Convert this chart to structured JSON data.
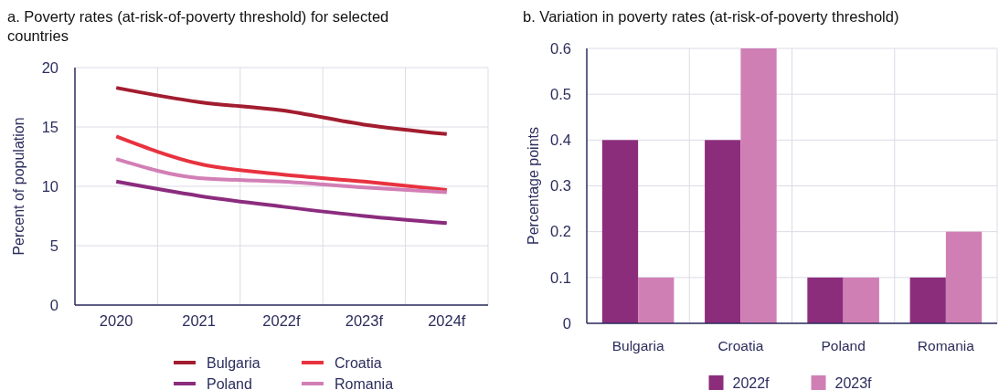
{
  "chart_data": [
    {
      "type": "line",
      "title": "a. Poverty rates (at-risk-of-poverty threshold) for selected countries",
      "ylabel": "Percent of population",
      "categories": [
        "2020",
        "2021",
        "2022f",
        "2023f",
        "2024f"
      ],
      "series": [
        {
          "name": "Bulgaria",
          "color": "#a21d2f",
          "values": [
            18.3,
            17.1,
            16.4,
            15.2,
            14.4
          ]
        },
        {
          "name": "Croatia",
          "color": "#e8323f",
          "values": [
            14.2,
            11.9,
            11.0,
            10.4,
            9.7
          ]
        },
        {
          "name": "Poland",
          "color": "#8b2c7e",
          "values": [
            10.4,
            9.2,
            8.3,
            7.5,
            6.9
          ]
        },
        {
          "name": "Romania",
          "color": "#d27fb6",
          "values": [
            12.3,
            10.7,
            10.4,
            9.9,
            9.5
          ]
        }
      ],
      "ylim": [
        0,
        20
      ],
      "yticks": [
        0,
        5,
        10,
        15,
        20
      ],
      "grid": true,
      "legend": "bottom"
    },
    {
      "type": "bar",
      "title": "b. Variation in poverty rates (at-risk-of-poverty threshold)",
      "ylabel": "Percentage points",
      "categories": [
        "Bulgaria",
        "Croatia",
        "Poland",
        "Romania"
      ],
      "series": [
        {
          "name": "2022f",
          "color": "#8c2d7c",
          "values": [
            0.4,
            0.4,
            0.1,
            0.1
          ]
        },
        {
          "name": "2023f",
          "color": "#d07fb5",
          "values": [
            0.1,
            0.6,
            0.1,
            0.2
          ]
        }
      ],
      "ylim": [
        0,
        0.6
      ],
      "yticks": [
        0,
        0.1,
        0.2,
        0.3,
        0.4,
        0.5,
        0.6
      ],
      "grid": true,
      "legend": "bottom"
    }
  ]
}
